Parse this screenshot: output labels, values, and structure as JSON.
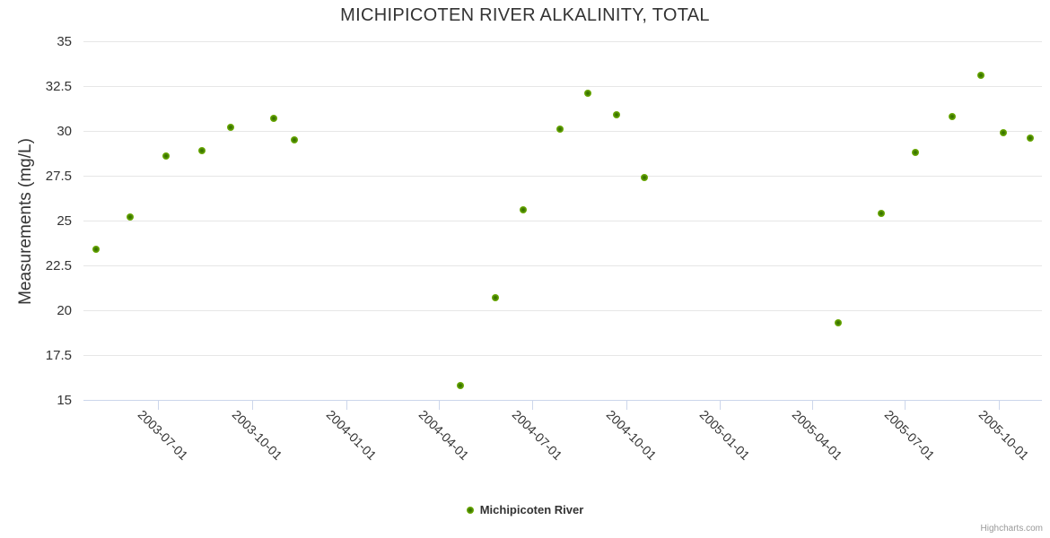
{
  "credits": "Highcharts.com",
  "colors": {
    "marker_green": "#6aa902",
    "marker_center": "#2f6b00",
    "gridline": "#e6e6e6",
    "axis_line": "#ccd6eb",
    "text": "#333333",
    "credits_text": "#999999"
  },
  "chart_data": {
    "type": "scatter",
    "title": "MICHIPICOTEN RIVER ALKALINITY, TOTAL",
    "xlabel": "",
    "ylabel": "Measurements (mg/L)",
    "ylim": [
      15,
      35
    ],
    "y_ticks": [
      35,
      32.5,
      30,
      27.5,
      25,
      22.5,
      20,
      17.5,
      15
    ],
    "x_range": [
      "2003-04-19",
      "2005-11-12"
    ],
    "x_ticks": [
      "2003-07-01",
      "2003-10-01",
      "2004-01-01",
      "2004-04-01",
      "2004-07-01",
      "2004-10-01",
      "2005-01-01",
      "2005-04-01",
      "2005-07-01",
      "2005-10-01"
    ],
    "grid": "horizontal-only",
    "legend_position": "bottom-center",
    "series": [
      {
        "name": "Michipicoten River",
        "points": [
          {
            "x": "2003-05-01",
            "y": 23.4
          },
          {
            "x": "2003-06-04",
            "y": 25.2
          },
          {
            "x": "2003-07-09",
            "y": 28.6
          },
          {
            "x": "2003-08-13",
            "y": 28.9
          },
          {
            "x": "2003-09-10",
            "y": 30.2
          },
          {
            "x": "2003-10-22",
            "y": 30.7
          },
          {
            "x": "2003-11-11",
            "y": 29.5
          },
          {
            "x": "2004-04-22",
            "y": 15.8
          },
          {
            "x": "2004-05-26",
            "y": 20.7
          },
          {
            "x": "2004-06-22",
            "y": 25.6
          },
          {
            "x": "2004-07-28",
            "y": 30.1
          },
          {
            "x": "2004-08-25",
            "y": 32.1
          },
          {
            "x": "2004-09-22",
            "y": 30.9
          },
          {
            "x": "2004-10-19",
            "y": 27.4
          },
          {
            "x": "2005-04-27",
            "y": 19.3
          },
          {
            "x": "2005-06-08",
            "y": 25.4
          },
          {
            "x": "2005-07-11",
            "y": 28.8
          },
          {
            "x": "2005-08-16",
            "y": 30.8
          },
          {
            "x": "2005-09-13",
            "y": 33.1
          },
          {
            "x": "2005-10-05",
            "y": 29.9
          },
          {
            "x": "2005-11-01",
            "y": 29.6
          }
        ]
      }
    ]
  }
}
